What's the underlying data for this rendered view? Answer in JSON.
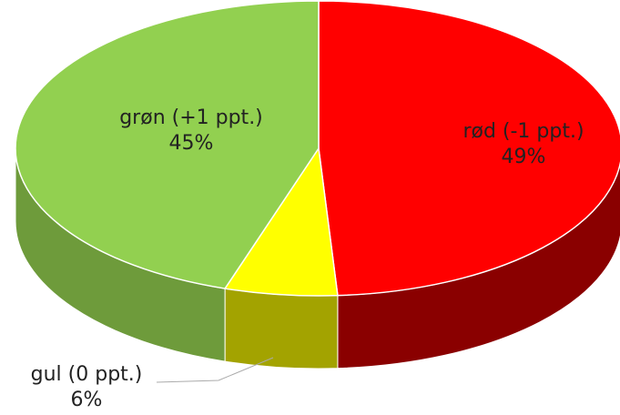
{
  "chart_data": {
    "type": "pie3d",
    "categories": [
      "rød (-1 ppt.)",
      "gul (0 ppt.)",
      "grøn (+1 ppt.)"
    ],
    "values": [
      49,
      6,
      45
    ],
    "value_labels": [
      "49%",
      "6%",
      "45%"
    ],
    "colors": [
      "#ff0000",
      "#ffff00",
      "#92d050"
    ],
    "side_colors": [
      "#8a0000",
      "#a3a300",
      "#6e9b3b"
    ]
  }
}
